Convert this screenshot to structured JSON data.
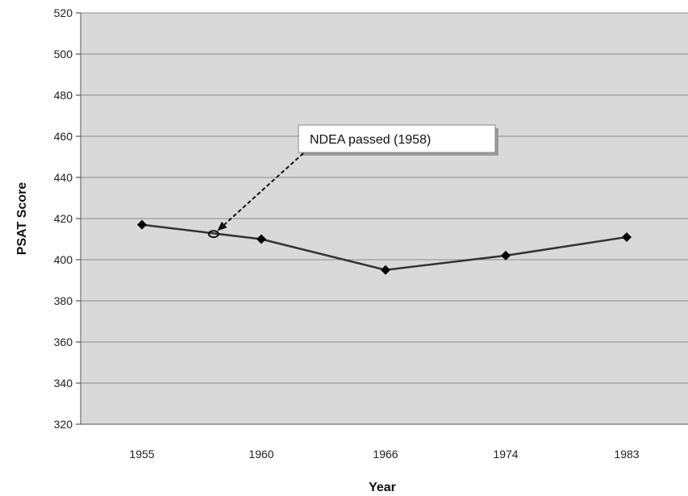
{
  "chart_data": {
    "type": "line",
    "categories": [
      "1955",
      "1960",
      "1966",
      "1974",
      "1983"
    ],
    "series": [
      {
        "values": [
          417,
          410,
          395,
          402,
          411
        ]
      }
    ],
    "xlabel": "Year",
    "ylabel": "PSAT Score",
    "ylim": [
      320,
      520
    ],
    "yticks": [
      320,
      340,
      360,
      380,
      400,
      420,
      440,
      460,
      480,
      500,
      520
    ],
    "grid": true,
    "annotations": [
      {
        "text": "NDEA passed (1958)",
        "x": 1958,
        "y": 412.5
      }
    ],
    "colors": {
      "plot_background": "#d9d9d9",
      "line": "#333333",
      "marker": "#000000",
      "gridline": "#8c8c8c"
    }
  }
}
